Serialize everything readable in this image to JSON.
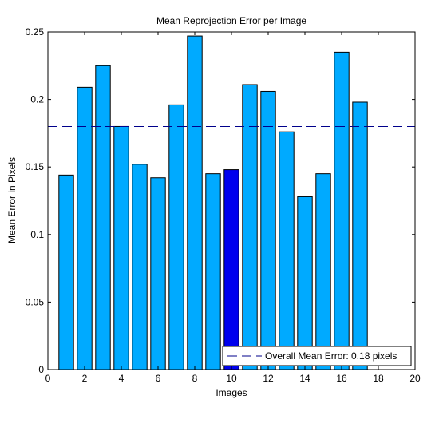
{
  "chart_data": {
    "type": "bar",
    "title": "Mean Reprojection Error per Image",
    "xlabel": "Images",
    "ylabel": "Mean Error in Pixels",
    "xlim": [
      0,
      20
    ],
    "ylim": [
      0,
      0.25
    ],
    "xticks": [
      0,
      2,
      4,
      6,
      8,
      10,
      12,
      14,
      16,
      18,
      20
    ],
    "yticks": [
      0,
      0.05,
      0.1,
      0.15,
      0.2,
      0.25
    ],
    "ytick_labels": [
      "0",
      "0.05",
      "0.1",
      "0.15",
      "0.2",
      "0.25"
    ],
    "categories": [
      1,
      2,
      3,
      4,
      5,
      6,
      7,
      8,
      9,
      10,
      11,
      12,
      13,
      14,
      15,
      16,
      17
    ],
    "values": [
      0.144,
      0.209,
      0.225,
      0.18,
      0.152,
      0.142,
      0.196,
      0.247,
      0.145,
      0.148,
      0.211,
      0.206,
      0.176,
      0.128,
      0.145,
      0.235,
      0.198
    ],
    "highlighted_index": 10,
    "bar_color": "#00aaff",
    "highlight_color": "#0000ee",
    "mean_line": {
      "value": 0.18,
      "label": "Overall Mean Error: 0.18 pixels",
      "color": "#00008b",
      "style": "dashed"
    },
    "grid": false,
    "legend_position": "bottom-right"
  }
}
